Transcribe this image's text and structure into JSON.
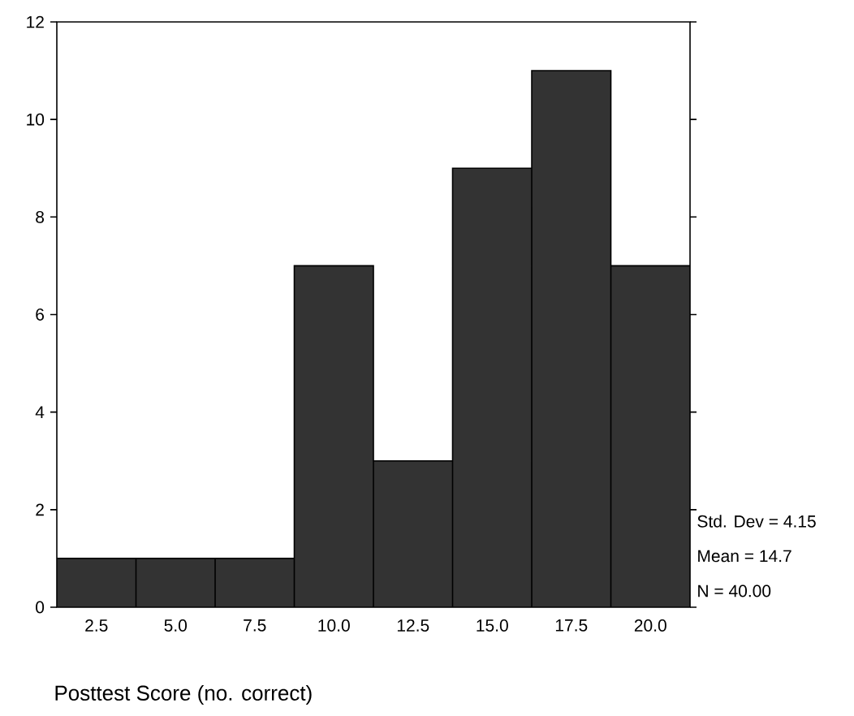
{
  "chart_data": {
    "type": "histogram",
    "xlabel": "Posttest Score (no. correct)",
    "bins": [
      1.25,
      3.75,
      6.25,
      8.75,
      11.25,
      13.75,
      16.25,
      18.75,
      21.25
    ],
    "values": [
      1,
      1,
      1,
      7,
      3,
      9,
      11,
      7
    ],
    "color": "#333333",
    "xlim": [
      1.25,
      21.25
    ],
    "xticks": [
      {
        "value": 2.5,
        "label": "2.5"
      },
      {
        "value": 5,
        "label": "5.0"
      },
      {
        "value": 7.5,
        "label": "7.5"
      },
      {
        "value": 10,
        "label": "10.0"
      },
      {
        "value": 12.5,
        "label": "12.5"
      },
      {
        "value": 15,
        "label": "15.0"
      },
      {
        "value": 17.5,
        "label": "17.5"
      },
      {
        "value": 20,
        "label": "20.0"
      }
    ],
    "ylim": [
      0,
      12
    ],
    "yticks": [
      0,
      2,
      4,
      6,
      8,
      10,
      12
    ],
    "annotations": [
      "Std. Dev = 4.15",
      "Mean = 14.7",
      "N = 40.00"
    ]
  }
}
